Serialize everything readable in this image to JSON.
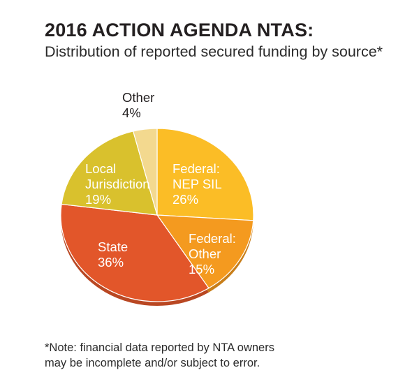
{
  "title": "2016 ACTION AGENDA NTAS:",
  "subtitle": "Distribution of reported secured funding by source*",
  "note_lines": [
    "*Note: financial data reported by NTA owners",
    "may be incomplete and/or subject to error."
  ],
  "chart_data": {
    "type": "pie",
    "title": "2016 ACTION AGENDA NTAS:",
    "subtitle": "Distribution of reported secured funding by source*",
    "slices": [
      {
        "label_lines": [
          "Federal:",
          "NEP SIL"
        ],
        "value": 26,
        "value_label": "26%",
        "color": "#fbbd26",
        "label_color": "#ffffff"
      },
      {
        "label_lines": [
          "Federal:",
          "Other"
        ],
        "value": 15,
        "value_label": "15%",
        "color": "#f49a1f",
        "label_color": "#ffffff"
      },
      {
        "label_lines": [
          "State"
        ],
        "value": 36,
        "value_label": "36%",
        "color": "#e2562a",
        "label_color": "#ffffff"
      },
      {
        "label_lines": [
          "Local",
          "Jurisdiction"
        ],
        "value": 19,
        "value_label": "19%",
        "color": "#d9c12d",
        "label_color": "#ffffff"
      },
      {
        "label_lines": [
          "Other"
        ],
        "value": 4,
        "value_label": "4%",
        "color": "#f3d98f",
        "label_color": "#231f20"
      }
    ]
  }
}
